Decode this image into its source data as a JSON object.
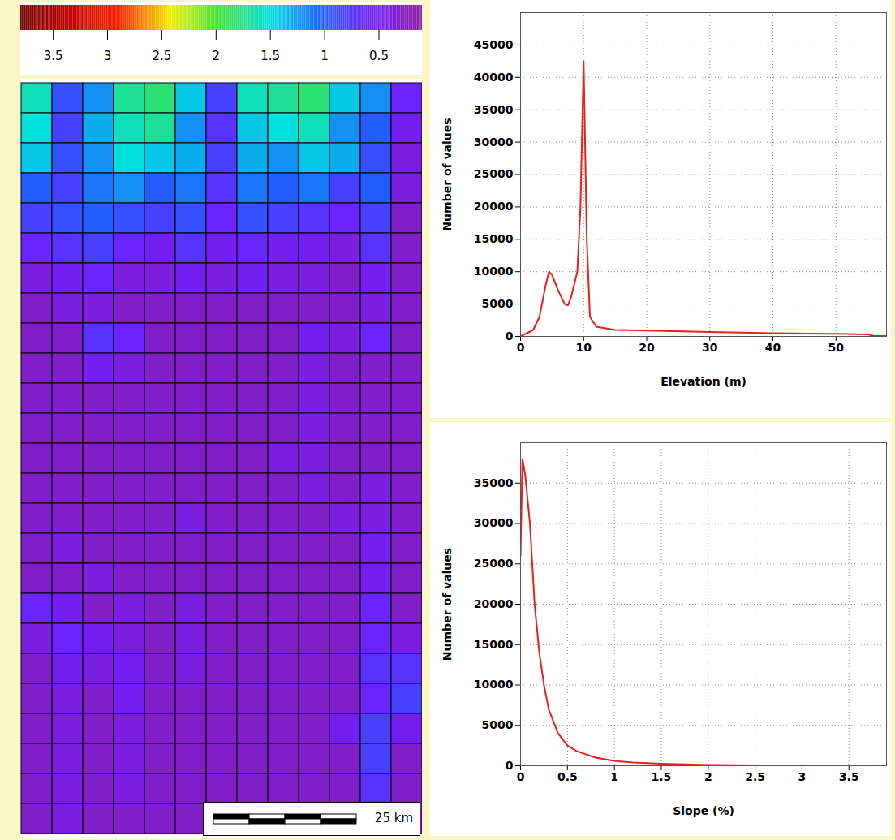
{
  "chart_data": [
    {
      "type": "heatmap",
      "cells": [
        [
          1.6,
          0.9,
          1.2,
          1.7,
          1.8,
          1.4,
          0.8,
          1.6,
          1.7,
          1.8,
          1.4,
          1.2,
          0.6
        ],
        [
          1.5,
          0.8,
          1.3,
          1.6,
          1.7,
          1.2,
          0.7,
          1.4,
          1.5,
          1.6,
          1.2,
          1.0,
          0.5
        ],
        [
          1.4,
          0.9,
          1.2,
          1.5,
          1.4,
          1.3,
          0.8,
          1.3,
          1.2,
          1.4,
          1.3,
          0.9,
          0.4
        ],
        [
          1.0,
          0.8,
          1.1,
          1.2,
          1.0,
          1.1,
          0.7,
          1.1,
          1.0,
          1.1,
          0.8,
          1.0,
          0.4
        ],
        [
          0.8,
          0.9,
          1.0,
          0.9,
          0.8,
          0.9,
          0.6,
          0.9,
          0.8,
          0.7,
          0.6,
          0.8,
          0.3
        ],
        [
          0.6,
          0.7,
          0.8,
          0.6,
          0.5,
          0.7,
          0.5,
          0.6,
          0.5,
          0.5,
          0.4,
          0.7,
          0.3
        ],
        [
          0.4,
          0.5,
          0.6,
          0.4,
          0.4,
          0.5,
          0.4,
          0.5,
          0.4,
          0.4,
          0.3,
          0.5,
          0.3
        ],
        [
          0.3,
          0.4,
          0.4,
          0.3,
          0.3,
          0.3,
          0.3,
          0.3,
          0.3,
          0.3,
          0.3,
          0.4,
          0.3
        ],
        [
          0.3,
          0.3,
          0.7,
          0.6,
          0.3,
          0.3,
          0.3,
          0.3,
          0.3,
          0.5,
          0.4,
          0.6,
          0.3
        ],
        [
          0.3,
          0.3,
          0.5,
          0.4,
          0.3,
          0.3,
          0.3,
          0.3,
          0.3,
          0.4,
          0.3,
          0.3,
          0.3
        ],
        [
          0.3,
          0.3,
          0.3,
          0.3,
          0.3,
          0.3,
          0.3,
          0.3,
          0.3,
          0.4,
          0.3,
          0.3,
          0.3
        ],
        [
          0.3,
          0.3,
          0.3,
          0.3,
          0.3,
          0.3,
          0.3,
          0.3,
          0.3,
          0.4,
          0.3,
          0.3,
          0.3
        ],
        [
          0.3,
          0.3,
          0.3,
          0.3,
          0.3,
          0.3,
          0.3,
          0.3,
          0.4,
          0.4,
          0.3,
          0.3,
          0.3
        ],
        [
          0.3,
          0.3,
          0.3,
          0.3,
          0.3,
          0.3,
          0.3,
          0.3,
          0.3,
          0.4,
          0.3,
          0.4,
          0.3
        ],
        [
          0.3,
          0.3,
          0.3,
          0.3,
          0.3,
          0.4,
          0.3,
          0.3,
          0.3,
          0.3,
          0.4,
          0.4,
          0.3
        ],
        [
          0.3,
          0.4,
          0.3,
          0.3,
          0.3,
          0.3,
          0.3,
          0.3,
          0.3,
          0.3,
          0.3,
          0.5,
          0.3
        ],
        [
          0.3,
          0.3,
          0.4,
          0.3,
          0.3,
          0.3,
          0.3,
          0.3,
          0.3,
          0.3,
          0.3,
          0.5,
          0.3
        ],
        [
          0.6,
          0.5,
          0.3,
          0.4,
          0.3,
          0.4,
          0.3,
          0.3,
          0.3,
          0.3,
          0.3,
          0.6,
          0.3
        ],
        [
          0.4,
          0.6,
          0.5,
          0.4,
          0.3,
          0.4,
          0.3,
          0.3,
          0.3,
          0.3,
          0.3,
          0.6,
          0.4
        ],
        [
          0.3,
          0.5,
          0.4,
          0.5,
          0.3,
          0.4,
          0.3,
          0.3,
          0.3,
          0.3,
          0.3,
          0.7,
          0.7
        ],
        [
          0.3,
          0.4,
          0.3,
          0.5,
          0.3,
          0.3,
          0.3,
          0.3,
          0.3,
          0.3,
          0.3,
          0.6,
          0.8
        ],
        [
          0.3,
          0.4,
          0.3,
          0.4,
          0.3,
          0.3,
          0.3,
          0.3,
          0.3,
          0.3,
          0.5,
          0.8,
          0.5
        ],
        [
          0.3,
          0.4,
          0.3,
          0.4,
          0.3,
          0.3,
          0.3,
          0.3,
          0.3,
          0.3,
          0.3,
          0.8,
          0.3
        ],
        [
          0.3,
          0.4,
          0.3,
          0.4,
          0.3,
          0.3,
          0.3,
          0.3,
          0.3,
          0.3,
          0.3,
          0.7,
          0.3
        ],
        [
          0.3,
          0.4,
          0.3,
          0.3,
          0.3,
          0.3,
          0.3,
          0.3,
          0.3,
          0.3,
          0.3,
          0.7,
          0.3
        ]
      ],
      "colorbar": {
        "range": [
          0.1,
          3.8
        ],
        "ticks": [
          3.5,
          3,
          2.5,
          2,
          1.5,
          1,
          0.5
        ]
      },
      "colors": [
        "#8c1c9e",
        "#7020ff",
        "#2060ff",
        "#00e0e0",
        "#40e040",
        "#f0f000",
        "#ff2000",
        "#c00000",
        "#700000"
      ],
      "grid": true,
      "tick_labels": false,
      "scale_bar": "25 km"
    },
    {
      "type": "line",
      "x": [
        0,
        1,
        2,
        3,
        4,
        4.5,
        5,
        6,
        7,
        7.5,
        8,
        9,
        9.5,
        10,
        10.5,
        11,
        12,
        15,
        20,
        30,
        40,
        50,
        55,
        56,
        58
      ],
      "values": [
        0,
        500,
        1000,
        3000,
        8000,
        10000,
        9500,
        7000,
        5000,
        4800,
        6000,
        10000,
        20000,
        42500,
        15000,
        3000,
        1500,
        1000,
        900,
        700,
        500,
        400,
        300,
        100,
        50
      ],
      "color": "#e8201c",
      "xlabel": "Elevation (m)",
      "ylabel": "Number of values",
      "xlim": [
        0,
        58
      ],
      "xticks": [
        0,
        10,
        20,
        30,
        40,
        50
      ],
      "ylim": [
        0,
        50000
      ],
      "yticks": [
        0,
        5000,
        10000,
        15000,
        20000,
        25000,
        30000,
        35000,
        40000,
        45000
      ],
      "grid": true
    },
    {
      "type": "line",
      "x": [
        0,
        0.02,
        0.05,
        0.1,
        0.15,
        0.2,
        0.25,
        0.3,
        0.4,
        0.5,
        0.6,
        0.8,
        1.0,
        1.2,
        1.5,
        2,
        2.5,
        3,
        3.5,
        3.8
      ],
      "values": [
        26000,
        38000,
        36000,
        30000,
        20000,
        14000,
        10000,
        7000,
        4000,
        2500,
        1800,
        1000,
        600,
        400,
        250,
        100,
        50,
        20,
        10,
        5
      ],
      "color": "#e8201c",
      "xlabel": "Slope (%)",
      "ylabel": "Number of values",
      "xlim": [
        0,
        3.9
      ],
      "xticks": [
        0,
        0.5,
        1,
        1.5,
        2,
        2.5,
        3,
        3.5
      ],
      "ylim": [
        0,
        40000
      ],
      "yticks": [
        0,
        5000,
        10000,
        15000,
        20000,
        25000,
        30000,
        35000
      ],
      "grid": true
    }
  ]
}
